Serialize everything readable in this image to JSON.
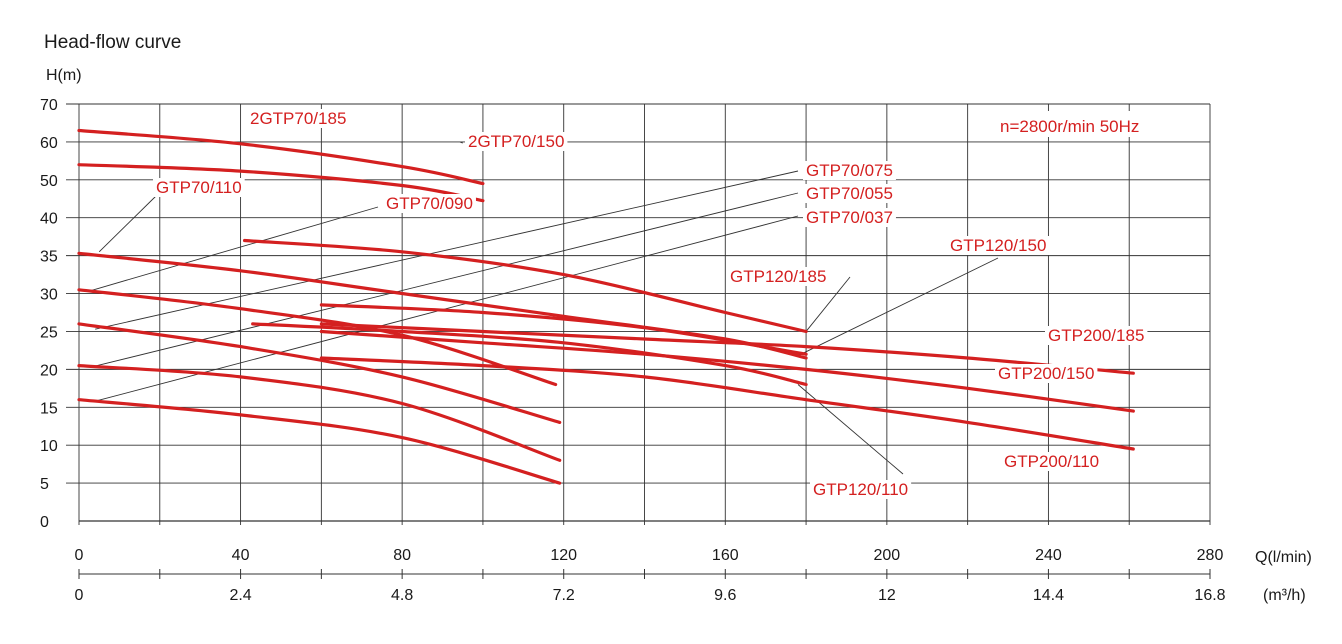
{
  "chart_data": {
    "type": "line",
    "title": "Head-flow curve",
    "ylabel": "H(m)",
    "xlabel": "Q(l/min)",
    "x2label": "(m³/h)",
    "note": "n=2800r/min  50Hz",
    "line_color": "#d42020",
    "grid": true,
    "ylim": [
      0,
      70
    ],
    "xlim": [
      0,
      280
    ],
    "y_ticks": [
      0,
      5,
      10,
      15,
      20,
      25,
      30,
      35,
      40,
      50,
      60,
      70
    ],
    "x_ticks": [
      0,
      40,
      80,
      120,
      160,
      200,
      240,
      280
    ],
    "x2_ticks": [
      {
        "q": 0,
        "label": "0"
      },
      {
        "q": 40,
        "label": "2.4"
      },
      {
        "q": 80,
        "label": "4.8"
      },
      {
        "q": 120,
        "label": "7.2"
      },
      {
        "q": 160,
        "label": "9.6"
      },
      {
        "q": 200,
        "label": "12"
      },
      {
        "q": 240,
        "label": "14.4"
      },
      {
        "q": 280,
        "label": "16.8"
      }
    ],
    "series": [
      {
        "name": "2GTP70/185",
        "x": [
          0,
          40,
          80,
          100
        ],
        "y": [
          63,
          59.5,
          53.5,
          49
        ]
      },
      {
        "name": "2GTP70/150",
        "x": [
          0,
          40,
          80,
          100
        ],
        "y": [
          54,
          52.3,
          48.5,
          44.5
        ]
      },
      {
        "name": "GTP70/110",
        "x": [
          0,
          40,
          80,
          120,
          160,
          180
        ],
        "y": [
          35.3,
          33,
          30,
          27,
          24,
          21.5
        ]
      },
      {
        "name": "GTP70/090",
        "x": [
          0,
          40,
          80,
          118
        ],
        "y": [
          30.5,
          28,
          24.5,
          18
        ]
      },
      {
        "name": "GTP70/075",
        "x": [
          0,
          40,
          80,
          119
        ],
        "y": [
          26,
          23,
          19,
          13
        ]
      },
      {
        "name": "GTP70/055",
        "x": [
          0,
          40,
          80,
          119
        ],
        "y": [
          20.5,
          19,
          15.5,
          8
        ]
      },
      {
        "name": "GTP70/037",
        "x": [
          0,
          40,
          80,
          119
        ],
        "y": [
          16,
          14,
          11,
          5
        ]
      },
      {
        "name": "GTP120/185",
        "x": [
          41,
          80,
          120,
          160,
          180
        ],
        "y": [
          37,
          35.5,
          32.5,
          27.5,
          25
        ]
      },
      {
        "name": "GTP120/150",
        "x": [
          60,
          100,
          140,
          180
        ],
        "y": [
          28.5,
          27.5,
          25.5,
          22
        ]
      },
      {
        "name": "GTP120/110",
        "x": [
          43,
          80,
          120,
          160,
          180
        ],
        "y": [
          26,
          25,
          23.5,
          20.5,
          18
        ]
      },
      {
        "name": "GTP200/185",
        "x": [
          60,
          100,
          140,
          180,
          220,
          261
        ],
        "y": [
          26,
          25,
          24,
          23,
          21.5,
          19.5
        ]
      },
      {
        "name": "GTP200/150",
        "x": [
          60,
          100,
          140,
          180,
          220,
          261
        ],
        "y": [
          25,
          23.5,
          22,
          20,
          17.5,
          14.5
        ]
      },
      {
        "name": "GTP200/110",
        "x": [
          60,
          100,
          140,
          180,
          220,
          261
        ],
        "y": [
          21.5,
          20.5,
          19,
          16,
          13,
          9.5
        ]
      }
    ]
  }
}
